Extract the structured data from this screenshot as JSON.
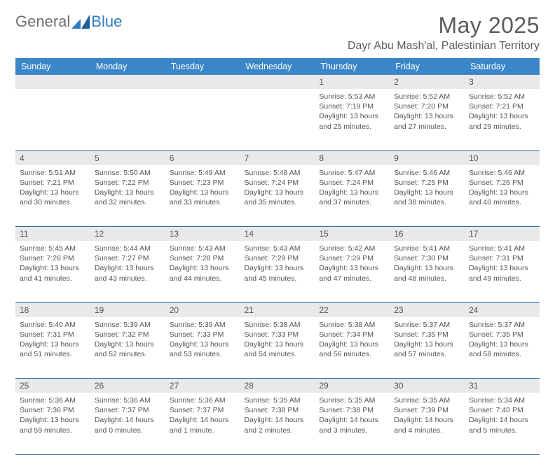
{
  "brand": {
    "part1": "General",
    "part2": "Blue"
  },
  "title": "May 2025",
  "location": "Dayr Abu Mash'al, Palestinian Territory",
  "colors": {
    "header_bg": "#3b86c8",
    "header_text": "#ffffff",
    "daynum_bg": "#e9e9e9",
    "body_text": "#555555",
    "rule": "#2b6fa8",
    "brand_gray": "#6b6f73",
    "brand_blue": "#2f7bc4"
  },
  "day_headers": [
    "Sunday",
    "Monday",
    "Tuesday",
    "Wednesday",
    "Thursday",
    "Friday",
    "Saturday"
  ],
  "weeks": [
    [
      {
        "n": "",
        "sr": "",
        "ss": "",
        "d1": "",
        "d2": ""
      },
      {
        "n": "",
        "sr": "",
        "ss": "",
        "d1": "",
        "d2": ""
      },
      {
        "n": "",
        "sr": "",
        "ss": "",
        "d1": "",
        "d2": ""
      },
      {
        "n": "",
        "sr": "",
        "ss": "",
        "d1": "",
        "d2": ""
      },
      {
        "n": "1",
        "sr": "Sunrise: 5:53 AM",
        "ss": "Sunset: 7:19 PM",
        "d1": "Daylight: 13 hours",
        "d2": "and 25 minutes."
      },
      {
        "n": "2",
        "sr": "Sunrise: 5:52 AM",
        "ss": "Sunset: 7:20 PM",
        "d1": "Daylight: 13 hours",
        "d2": "and 27 minutes."
      },
      {
        "n": "3",
        "sr": "Sunrise: 5:52 AM",
        "ss": "Sunset: 7:21 PM",
        "d1": "Daylight: 13 hours",
        "d2": "and 29 minutes."
      }
    ],
    [
      {
        "n": "4",
        "sr": "Sunrise: 5:51 AM",
        "ss": "Sunset: 7:21 PM",
        "d1": "Daylight: 13 hours",
        "d2": "and 30 minutes."
      },
      {
        "n": "5",
        "sr": "Sunrise: 5:50 AM",
        "ss": "Sunset: 7:22 PM",
        "d1": "Daylight: 13 hours",
        "d2": "and 32 minutes."
      },
      {
        "n": "6",
        "sr": "Sunrise: 5:49 AM",
        "ss": "Sunset: 7:23 PM",
        "d1": "Daylight: 13 hours",
        "d2": "and 33 minutes."
      },
      {
        "n": "7",
        "sr": "Sunrise: 5:48 AM",
        "ss": "Sunset: 7:24 PM",
        "d1": "Daylight: 13 hours",
        "d2": "and 35 minutes."
      },
      {
        "n": "8",
        "sr": "Sunrise: 5:47 AM",
        "ss": "Sunset: 7:24 PM",
        "d1": "Daylight: 13 hours",
        "d2": "and 37 minutes."
      },
      {
        "n": "9",
        "sr": "Sunrise: 5:46 AM",
        "ss": "Sunset: 7:25 PM",
        "d1": "Daylight: 13 hours",
        "d2": "and 38 minutes."
      },
      {
        "n": "10",
        "sr": "Sunrise: 5:46 AM",
        "ss": "Sunset: 7:26 PM",
        "d1": "Daylight: 13 hours",
        "d2": "and 40 minutes."
      }
    ],
    [
      {
        "n": "11",
        "sr": "Sunrise: 5:45 AM",
        "ss": "Sunset: 7:26 PM",
        "d1": "Daylight: 13 hours",
        "d2": "and 41 minutes."
      },
      {
        "n": "12",
        "sr": "Sunrise: 5:44 AM",
        "ss": "Sunset: 7:27 PM",
        "d1": "Daylight: 13 hours",
        "d2": "and 43 minutes."
      },
      {
        "n": "13",
        "sr": "Sunrise: 5:43 AM",
        "ss": "Sunset: 7:28 PM",
        "d1": "Daylight: 13 hours",
        "d2": "and 44 minutes."
      },
      {
        "n": "14",
        "sr": "Sunrise: 5:43 AM",
        "ss": "Sunset: 7:29 PM",
        "d1": "Daylight: 13 hours",
        "d2": "and 45 minutes."
      },
      {
        "n": "15",
        "sr": "Sunrise: 5:42 AM",
        "ss": "Sunset: 7:29 PM",
        "d1": "Daylight: 13 hours",
        "d2": "and 47 minutes."
      },
      {
        "n": "16",
        "sr": "Sunrise: 5:41 AM",
        "ss": "Sunset: 7:30 PM",
        "d1": "Daylight: 13 hours",
        "d2": "and 48 minutes."
      },
      {
        "n": "17",
        "sr": "Sunrise: 5:41 AM",
        "ss": "Sunset: 7:31 PM",
        "d1": "Daylight: 13 hours",
        "d2": "and 49 minutes."
      }
    ],
    [
      {
        "n": "18",
        "sr": "Sunrise: 5:40 AM",
        "ss": "Sunset: 7:31 PM",
        "d1": "Daylight: 13 hours",
        "d2": "and 51 minutes."
      },
      {
        "n": "19",
        "sr": "Sunrise: 5:39 AM",
        "ss": "Sunset: 7:32 PM",
        "d1": "Daylight: 13 hours",
        "d2": "and 52 minutes."
      },
      {
        "n": "20",
        "sr": "Sunrise: 5:39 AM",
        "ss": "Sunset: 7:33 PM",
        "d1": "Daylight: 13 hours",
        "d2": "and 53 minutes."
      },
      {
        "n": "21",
        "sr": "Sunrise: 5:38 AM",
        "ss": "Sunset: 7:33 PM",
        "d1": "Daylight: 13 hours",
        "d2": "and 54 minutes."
      },
      {
        "n": "22",
        "sr": "Sunrise: 5:38 AM",
        "ss": "Sunset: 7:34 PM",
        "d1": "Daylight: 13 hours",
        "d2": "and 56 minutes."
      },
      {
        "n": "23",
        "sr": "Sunrise: 5:37 AM",
        "ss": "Sunset: 7:35 PM",
        "d1": "Daylight: 13 hours",
        "d2": "and 57 minutes."
      },
      {
        "n": "24",
        "sr": "Sunrise: 5:37 AM",
        "ss": "Sunset: 7:35 PM",
        "d1": "Daylight: 13 hours",
        "d2": "and 58 minutes."
      }
    ],
    [
      {
        "n": "25",
        "sr": "Sunrise: 5:36 AM",
        "ss": "Sunset: 7:36 PM",
        "d1": "Daylight: 13 hours",
        "d2": "and 59 minutes."
      },
      {
        "n": "26",
        "sr": "Sunrise: 5:36 AM",
        "ss": "Sunset: 7:37 PM",
        "d1": "Daylight: 14 hours",
        "d2": "and 0 minutes."
      },
      {
        "n": "27",
        "sr": "Sunrise: 5:36 AM",
        "ss": "Sunset: 7:37 PM",
        "d1": "Daylight: 14 hours",
        "d2": "and 1 minute."
      },
      {
        "n": "28",
        "sr": "Sunrise: 5:35 AM",
        "ss": "Sunset: 7:38 PM",
        "d1": "Daylight: 14 hours",
        "d2": "and 2 minutes."
      },
      {
        "n": "29",
        "sr": "Sunrise: 5:35 AM",
        "ss": "Sunset: 7:38 PM",
        "d1": "Daylight: 14 hours",
        "d2": "and 3 minutes."
      },
      {
        "n": "30",
        "sr": "Sunrise: 5:35 AM",
        "ss": "Sunset: 7:39 PM",
        "d1": "Daylight: 14 hours",
        "d2": "and 4 minutes."
      },
      {
        "n": "31",
        "sr": "Sunrise: 5:34 AM",
        "ss": "Sunset: 7:40 PM",
        "d1": "Daylight: 14 hours",
        "d2": "and 5 minutes."
      }
    ]
  ]
}
